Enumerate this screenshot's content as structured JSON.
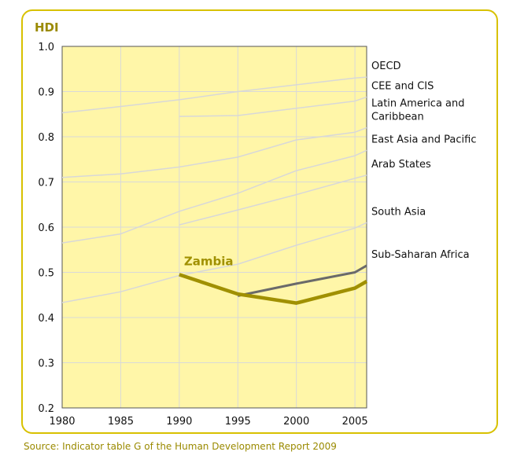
{
  "chart_data": {
    "type": "line",
    "ylabel": "HDI",
    "source": "Source: Indicator table G of the Human Development Report 2009",
    "xlim": [
      1980,
      2006
    ],
    "ylim": [
      0.2,
      1.0
    ],
    "x_ticks": [
      "1980",
      "1985",
      "1990",
      "1995",
      "2000",
      "2005"
    ],
    "y_ticks": [
      "0.2",
      "0.3",
      "0.4",
      "0.5",
      "0.6",
      "0.7",
      "0.8",
      "0.9",
      "1.0"
    ],
    "grid": true,
    "plot_background": "#fff6a8",
    "highlight": {
      "name": "Zambia",
      "color": "#a09000",
      "x": [
        1990,
        1995,
        2000,
        2005,
        2006
      ],
      "y": [
        0.495,
        0.452,
        0.432,
        0.465,
        0.48
      ]
    },
    "series": [
      {
        "name": "OECD",
        "color": "#d8d8d8",
        "x": [
          1980,
          1985,
          1990,
          1995,
          2000,
          2005,
          2006
        ],
        "y": [
          0.853,
          0.867,
          0.882,
          0.9,
          0.915,
          0.93,
          0.932
        ]
      },
      {
        "name": "CEE and CIS",
        "color": "#d8d8d8",
        "x": [
          1990,
          1995,
          2000,
          2005,
          2006
        ],
        "y": [
          0.845,
          0.847,
          0.863,
          0.879,
          0.888
        ]
      },
      {
        "name": "Latin America and Caribbean",
        "color": "#d8d8d8",
        "x": [
          1980,
          1985,
          1990,
          1995,
          2000,
          2005,
          2006
        ],
        "y": [
          0.71,
          0.718,
          0.733,
          0.755,
          0.793,
          0.81,
          0.82
        ]
      },
      {
        "name": "East Asia and Pacific",
        "color": "#d8d8d8",
        "x": [
          1980,
          1985,
          1990,
          1995,
          2000,
          2005,
          2006
        ],
        "y": [
          0.565,
          0.585,
          0.635,
          0.675,
          0.725,
          0.758,
          0.77
        ]
      },
      {
        "name": "Arab States",
        "color": "#d8d8d8",
        "x": [
          1990,
          1995,
          2000,
          2005,
          2006
        ],
        "y": [
          0.605,
          0.638,
          0.672,
          0.708,
          0.715
        ]
      },
      {
        "name": "South Asia",
        "color": "#d8d8d8",
        "x": [
          1980,
          1985,
          1990,
          1995,
          2000,
          2005,
          2006
        ],
        "y": [
          0.433,
          0.457,
          0.493,
          0.518,
          0.56,
          0.598,
          0.61
        ]
      },
      {
        "name": "Sub-Saharan Africa",
        "color": "#6a6a6a",
        "x": [
          1995,
          2000,
          2005,
          2006
        ],
        "y": [
          0.448,
          0.475,
          0.5,
          0.515
        ]
      }
    ],
    "right_labels": [
      {
        "lines": [
          "OECD"
        ],
        "y": 0.932
      },
      {
        "lines": [
          "CEE and CIS"
        ],
        "y": 0.888
      },
      {
        "lines": [
          "Latin America and",
          "Caribbean"
        ],
        "y": 0.82
      },
      {
        "lines": [
          "East Asia and Pacific"
        ],
        "y": 0.77
      },
      {
        "lines": [
          "Arab States"
        ],
        "y": 0.715
      },
      {
        "lines": [
          "South Asia"
        ],
        "y": 0.61
      },
      {
        "lines": [
          "Sub-Saharan Africa"
        ],
        "y": 0.515
      }
    ]
  }
}
